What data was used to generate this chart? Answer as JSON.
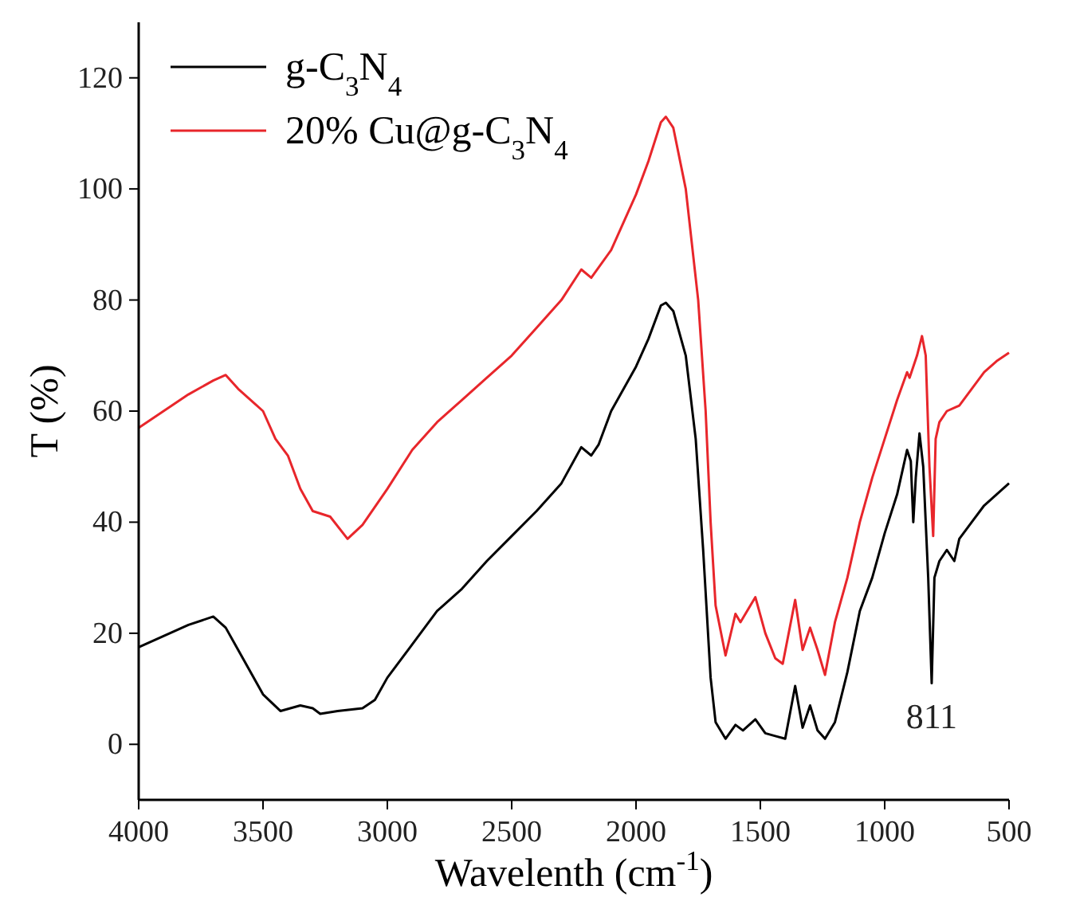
{
  "chart_data": {
    "type": "line",
    "xlabel": "Wavelenth (cm$^{-1}$)",
    "ylabel": "T (%)",
    "xlim": [
      4000,
      500
    ],
    "ylim": [
      -10,
      130
    ],
    "xticks": [
      4000,
      3500,
      3000,
      2500,
      2000,
      1500,
      1000,
      500
    ],
    "yticks": [
      0,
      20,
      40,
      60,
      80,
      100,
      120
    ],
    "grid": false,
    "legend": "top left",
    "annotations": [
      {
        "text": "811",
        "x": 811,
        "y": 11
      }
    ],
    "series": [
      {
        "name": "g-C$_{3}$N$_{4}$",
        "color": "#000000",
        "x": [
          4000,
          3900,
          3800,
          3700,
          3650,
          3600,
          3500,
          3430,
          3350,
          3300,
          3270,
          3200,
          3100,
          3050,
          3000,
          2900,
          2800,
          2700,
          2600,
          2500,
          2400,
          2300,
          2220,
          2180,
          2150,
          2100,
          2000,
          1950,
          1900,
          1880,
          1850,
          1800,
          1760,
          1730,
          1700,
          1680,
          1640,
          1600,
          1570,
          1520,
          1480,
          1440,
          1400,
          1360,
          1330,
          1300,
          1270,
          1240,
          1200,
          1150,
          1100,
          1050,
          1000,
          950,
          910,
          895,
          885,
          875,
          860,
          845,
          825,
          811,
          800,
          780,
          750,
          720,
          700,
          650,
          600,
          550,
          500
        ],
        "values": [
          17.5,
          19.5,
          21.5,
          23,
          21,
          17,
          9,
          6,
          7,
          6.5,
          5.5,
          6,
          6.5,
          8,
          12,
          18,
          24,
          28,
          33,
          37.5,
          42,
          47,
          53.5,
          52,
          54,
          60,
          68,
          73,
          79,
          79.5,
          78,
          70,
          55,
          35,
          12,
          4,
          1,
          3.5,
          2.5,
          4.5,
          2,
          1.5,
          1,
          10.5,
          3,
          7,
          2.5,
          1,
          4,
          13,
          24,
          30,
          38,
          45,
          53,
          51,
          40,
          48,
          56,
          50,
          30,
          11,
          30,
          33,
          35,
          33,
          37,
          40,
          43,
          45,
          47
        ]
      },
      {
        "name": "20% Cu@g-C$_{3}$N$_{4}$",
        "color": "#e8262b",
        "x": [
          4000,
          3900,
          3800,
          3700,
          3650,
          3600,
          3500,
          3450,
          3400,
          3350,
          3300,
          3230,
          3160,
          3100,
          3000,
          2900,
          2800,
          2700,
          2600,
          2500,
          2400,
          2300,
          2220,
          2180,
          2100,
          2000,
          1950,
          1900,
          1880,
          1850,
          1800,
          1750,
          1720,
          1700,
          1680,
          1640,
          1600,
          1580,
          1540,
          1520,
          1480,
          1440,
          1410,
          1360,
          1330,
          1300,
          1270,
          1240,
          1200,
          1150,
          1100,
          1050,
          1000,
          950,
          910,
          900,
          870,
          850,
          835,
          820,
          805,
          795,
          780,
          750,
          700,
          650,
          600,
          550,
          500
        ],
        "values": [
          57,
          60,
          63,
          65.5,
          66.5,
          64,
          60,
          55,
          52,
          46,
          42,
          41,
          37,
          39.5,
          46,
          53,
          58,
          62,
          66,
          70,
          75,
          80,
          85.5,
          84,
          89,
          99,
          105,
          112,
          113,
          111,
          100,
          80,
          60,
          40,
          25,
          16,
          23.5,
          22,
          25,
          26.5,
          20,
          15.5,
          14.5,
          26,
          17,
          21,
          17,
          12.5,
          22,
          30,
          40,
          48,
          55,
          62,
          67,
          66,
          70,
          73.5,
          70,
          50,
          37.5,
          55,
          58,
          60,
          61,
          64,
          67,
          69,
          70.5
        ]
      }
    ]
  }
}
